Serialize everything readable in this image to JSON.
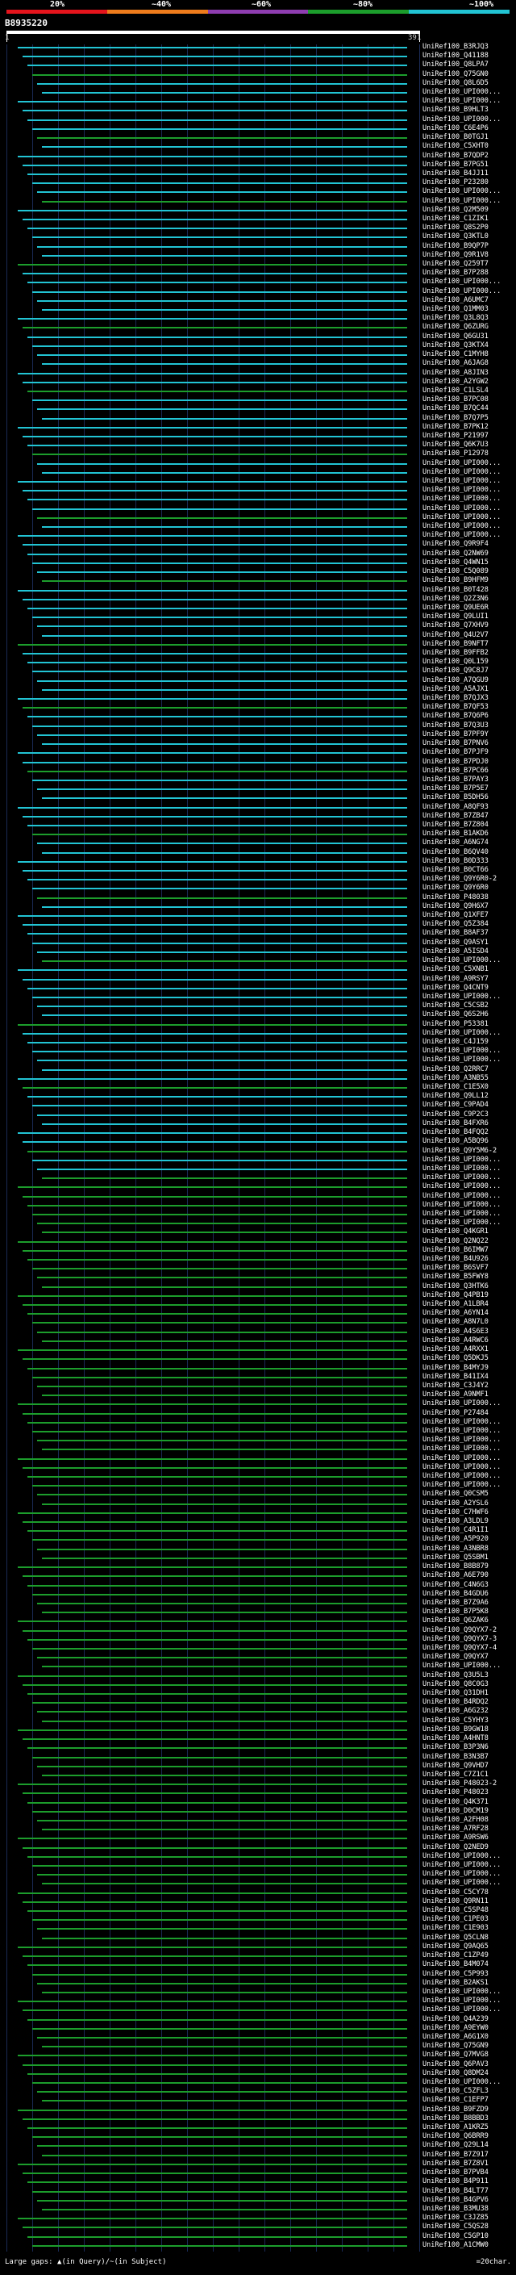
{
  "legend": {
    "labels": [
      "20%",
      "~40%",
      "~60%",
      "~80%",
      "~100%"
    ],
    "colors": [
      "#e5141c",
      "#ee7c1c",
      "#8e3db0",
      "#1c9d2c",
      "#22c4d4"
    ]
  },
  "query": {
    "id": "B8935220",
    "start": "1",
    "end": "391"
  },
  "footer": {
    "gaps_label": "Large gaps: ▲(in Query)/~(in Subject)",
    "scale_label": "=20char."
  },
  "hits": [
    "UniRef100_B3RJQ3",
    "UniRef100_Q41188",
    "UniRef100_Q8LPA7",
    "UniRef100_Q75GN0",
    "UniRef100_Q8L6D5",
    "UniRef100_UPI000...",
    "UniRef100_UPI000...",
    "UniRef100_B9HLT3",
    "UniRef100_UPI000...",
    "UniRef100_C6E4P6",
    "UniRef100_B0TGJ1",
    "UniRef100_C5XHT0",
    "UniRef100_B7QDP2",
    "UniRef100_B7PG51",
    "UniRef100_B4JJ11",
    "UniRef100_P23280",
    "UniRef100_UPI000...",
    "UniRef100_UPI000...",
    "UniRef100_Q2M509",
    "UniRef100_C1ZIK1",
    "UniRef100_Q8S2P0",
    "UniRef100_Q3KTL0",
    "UniRef100_B9QP7P",
    "UniRef100_Q9R1V8",
    "UniRef100_Q259T7",
    "UniRef100_B7P288",
    "UniRef100_UPI000...",
    "UniRef100_UPI000...",
    "UniRef100_A6UMC7",
    "UniRef100_Q1MM03",
    "UniRef100_Q3L8Q3",
    "UniRef100_Q6ZURG",
    "UniRef100_Q6GU31",
    "UniRef100_Q3KTX4",
    "UniRef100_C1MYH8",
    "UniRef100_A6JAG8",
    "UniRef100_A8JIN3",
    "UniRef100_A2YGW2",
    "UniRef100_C1LSL4",
    "UniRef100_B7PC08",
    "UniRef100_B7QC44",
    "UniRef100_B7Q7P5",
    "UniRef100_B7PK12",
    "UniRef100_P21997",
    "UniRef100_Q6K7U3",
    "UniRef100_P12978",
    "UniRef100_UPI000...",
    "UniRef100_UPI000...",
    "UniRef100_UPI000...",
    "UniRef100_UPI000...",
    "UniRef100_UPI000...",
    "UniRef100_UPI000...",
    "UniRef100_UPI000...",
    "UniRef100_UPI000...",
    "UniRef100_UPI000...",
    "UniRef100_Q9R9F4",
    "UniRef100_Q2NW69",
    "UniRef100_Q4WN15",
    "UniRef100_C5Q089",
    "UniRef100_B9HFM9",
    "UniRef100_B0T428",
    "UniRef100_Q2Z3N6",
    "UniRef100_Q9UE6R",
    "UniRef100_Q9LUI1",
    "UniRef100_Q7XHV9",
    "UniRef100_Q4U2V7",
    "UniRef100_B9NFT7",
    "UniRef100_B9FFB2",
    "UniRef100_Q0L159",
    "UniRef100_Q9C8J7",
    "UniRef100_A7QGU9",
    "UniRef100_A5AJX1",
    "UniRef100_B7QJX3",
    "UniRef100_B7QF53",
    "UniRef100_B7Q6P6",
    "UniRef100_B7Q3U3",
    "UniRef100_B7PF9Y",
    "UniRef100_B7PNV6",
    "UniRef100_B7PJF9",
    "UniRef100_B7PDJ0",
    "UniRef100_B7PC66",
    "UniRef100_B7PAY3",
    "UniRef100_B7P5E7",
    "UniRef100_B5DH56",
    "UniRef100_A8QF93",
    "UniRef100_B7ZB47",
    "UniRef100_B7Z804",
    "UniRef100_B1AKD6",
    "UniRef100_A6NG74",
    "UniRef100_B6QV40",
    "UniRef100_B0D333",
    "UniRef100_B0CT66",
    "UniRef100_Q9Y6R0-2",
    "UniRef100_Q9Y6R0",
    "UniRef100_P48038",
    "UniRef100_Q9H6X7",
    "UniRef100_Q1XFE7",
    "UniRef100_Q5Z384",
    "UniRef100_B8AF37",
    "UniRef100_Q9ASY1",
    "UniRef100_A5ISD4",
    "UniRef100_UPI000...",
    "UniRef100_C5XNB1",
    "UniRef100_A9RSY7",
    "UniRef100_Q4CNT9",
    "UniRef100_UPI000...",
    "UniRef100_C5CSB2",
    "UniRef100_Q6S2H6",
    "UniRef100_P53381",
    "UniRef100_UPI000...",
    "UniRef100_C4J159",
    "UniRef100_UPI000...",
    "UniRef100_UPI000...",
    "UniRef100_Q2RRC7",
    "UniRef100_A3NB55",
    "UniRef100_C1E5X0",
    "UniRef100_Q9LL12",
    "UniRef100_C9PAD4",
    "UniRef100_C9P2C3",
    "UniRef100_B4FXR6",
    "UniRef100_B4FQQ2",
    "UniRef100_A5BQ96",
    "UniRef100_Q9Y5M6-2",
    "UniRef100_UPI000...",
    "UniRef100_UPI000...",
    "UniRef100_UPI000...",
    "UniRef100_UPI000...",
    "UniRef100_UPI000...",
    "UniRef100_UPI000...",
    "UniRef100_UPI000...",
    "UniRef100_UPI000...",
    "UniRef100_Q4KGR1",
    "UniRef100_Q2NQ22",
    "UniRef100_B6IMW7",
    "UniRef100_B4U926",
    "UniRef100_B6SVF7",
    "UniRef100_B5FWY8",
    "UniRef100_Q3HTK6",
    "UniRef100_Q4PB19",
    "UniRef100_A1LBR4",
    "UniRef100_A6YN14",
    "UniRef100_A8N7L0",
    "UniRef100_A4S6E3",
    "UniRef100_A4RWC6",
    "UniRef100_A4RXX1",
    "UniRef100_Q5DKJ5",
    "UniRef100_B4MYJ9",
    "UniRef100_B41IX4",
    "UniRef100_C3J4Y2",
    "UniRef100_A9NMF1",
    "UniRef100_UPI000...",
    "UniRef100_P27484",
    "UniRef100_UPI000...",
    "UniRef100_UPI000...",
    "UniRef100_UPI000...",
    "UniRef100_UPI000...",
    "UniRef100_UPI000...",
    "UniRef100_UPI000...",
    "UniRef100_UPI000...",
    "UniRef100_UPI000...",
    "UniRef100_Q0CSM5",
    "UniRef100_A2YSL6",
    "UniRef100_C7HWF6",
    "UniRef100_A3LDL9",
    "UniRef100_C4R1I1",
    "UniRef100_A5P920",
    "UniRef100_A3NBR8",
    "UniRef100_Q5SBM1",
    "UniRef100_B8B879",
    "UniRef100_A6E790",
    "UniRef100_C4N6G3",
    "UniRef100_B4GDU6",
    "UniRef100_B7Z9A6",
    "UniRef100_B7P5K8",
    "UniRef100_Q6ZAK6",
    "UniRef100_Q9QYX7-2",
    "UniRef100_Q9QYX7-3",
    "UniRef100_Q9QYX7-4",
    "UniRef100_Q9QYX7",
    "UniRef100_UPI000...",
    "UniRef100_Q3U5L3",
    "UniRef100_Q8C0G3",
    "UniRef100_Q31DH1",
    "UniRef100_B4RDQ2",
    "UniRef100_A6G232",
    "UniRef100_C5YHY3",
    "UniRef100_B9GW18",
    "UniRef100_A4HNT8",
    "UniRef100_B3P3N6",
    "UniRef100_B3N3B7",
    "UniRef100_Q9VHD7",
    "UniRef100_C7Z1C1",
    "UniRef100_P48023-2",
    "UniRef100_P48023",
    "UniRef100_Q4K371",
    "UniRef100_D0CM19",
    "UniRef100_A2FH08",
    "UniRef100_A7RF28",
    "UniRef100_A9RSW6",
    "UniRef100_Q2NED9",
    "UniRef100_UPI000...",
    "UniRef100_UPI000...",
    "UniRef100_UPI000...",
    "UniRef100_UPI000...",
    "UniRef100_C5CY78",
    "UniRef100_Q9RN11",
    "UniRef100_C5SP48",
    "UniRef100_C1PE03",
    "UniRef100_C1E903",
    "UniRef100_Q5CLN8",
    "UniRef100_Q9AQ65",
    "UniRef100_C1ZP49",
    "UniRef100_B4M074",
    "UniRef100_C5P993",
    "UniRef100_B2AKS1",
    "UniRef100_UPI000...",
    "UniRef100_UPI000...",
    "UniRef100_UPI000...",
    "UniRef100_Q4A239",
    "UniRef100_A9EYW0",
    "UniRef100_A6G1X0",
    "UniRef100_Q75GN9",
    "UniRef100_Q7MVG8",
    "UniRef100_Q6PAV3",
    "UniRef100_Q8DM24",
    "UniRef100_UPI000...",
    "UniRef100_C5ZFL3",
    "UniRef100_C1EFP7",
    "UniRef100_B9FZD9",
    "UniRef100_B8BBD3",
    "UniRef100_A1KRZ5",
    "UniRef100_Q6BRR9",
    "UniRef100_Q29L14",
    "UniRef100_B7Z917",
    "UniRef100_B7Z8V1",
    "UniRef100_B7PVB4",
    "UniRef100_B4P911",
    "UniRef100_B4LT77",
    "UniRef100_B4GPV6",
    "UniRef100_B3MU38",
    "UniRef100_C3JZ85",
    "UniRef100_C5QS28",
    "UniRef100_C5GP10",
    "UniRef100_A1CMW0"
  ]
}
